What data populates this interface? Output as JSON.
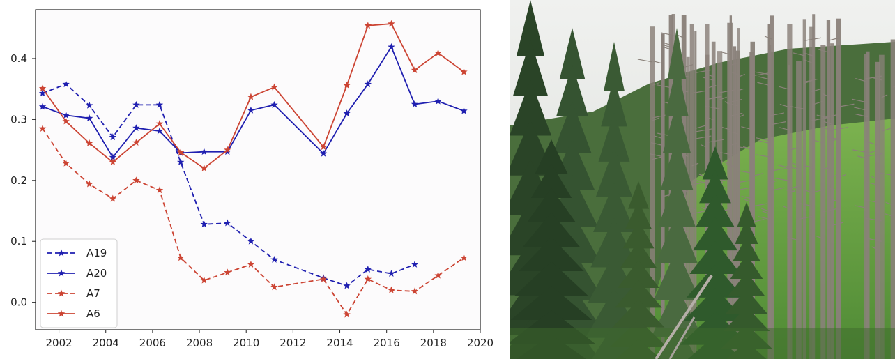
{
  "chart_data": {
    "type": "line",
    "title": "",
    "xlabel": "",
    "ylabel": "",
    "xlim": [
      2001,
      2020
    ],
    "ylim": [
      -0.045,
      0.48
    ],
    "xticks": [
      2002,
      2004,
      2006,
      2008,
      2010,
      2012,
      2014,
      2016,
      2018,
      2020
    ],
    "yticks": [
      0.0,
      0.1,
      0.2,
      0.3,
      0.4
    ],
    "ytick_labels": [
      "0.0",
      "0.1",
      "0.2",
      "0.3",
      "0.4"
    ],
    "grid": false,
    "legend_position": "lower-left",
    "series": [
      {
        "name": "A19",
        "color": "#1f1fb0",
        "linestyle": "dashed",
        "marker": "star",
        "points": [
          [
            2001.3,
            0.343
          ],
          [
            2002.3,
            0.358
          ],
          [
            2003.3,
            0.323
          ],
          [
            2004.3,
            0.271
          ],
          [
            2005.3,
            0.324
          ],
          [
            2006.3,
            0.324
          ],
          [
            2007.2,
            0.23
          ],
          [
            2008.2,
            0.128
          ],
          [
            2009.2,
            0.13
          ],
          [
            2010.2,
            0.1
          ],
          [
            2011.2,
            0.07
          ],
          [
            2013.3,
            0.04
          ],
          [
            2014.3,
            0.027
          ],
          [
            2015.2,
            0.054
          ],
          [
            2016.2,
            0.047
          ],
          [
            2017.2,
            0.062
          ]
        ]
      },
      {
        "name": "A20",
        "color": "#1f1fb0",
        "linestyle": "solid",
        "marker": "star",
        "points": [
          [
            2001.3,
            0.321
          ],
          [
            2002.3,
            0.307
          ],
          [
            2003.3,
            0.302
          ],
          [
            2004.3,
            0.238
          ],
          [
            2005.3,
            0.286
          ],
          [
            2006.3,
            0.281
          ],
          [
            2007.2,
            0.245
          ],
          [
            2008.2,
            0.247
          ],
          [
            2009.2,
            0.247
          ],
          [
            2010.2,
            0.315
          ],
          [
            2011.2,
            0.324
          ],
          [
            2013.3,
            0.244
          ],
          [
            2014.3,
            0.31
          ],
          [
            2015.2,
            0.358
          ],
          [
            2016.2,
            0.419
          ],
          [
            2017.2,
            0.325
          ],
          [
            2018.2,
            0.33
          ],
          [
            2019.3,
            0.314
          ]
        ]
      },
      {
        "name": "A7",
        "color": "#cc4433",
        "linestyle": "dashed",
        "marker": "star",
        "points": [
          [
            2001.3,
            0.285
          ],
          [
            2002.3,
            0.228
          ],
          [
            2003.3,
            0.194
          ],
          [
            2004.3,
            0.17
          ],
          [
            2005.3,
            0.2
          ],
          [
            2006.3,
            0.184
          ],
          [
            2007.2,
            0.073
          ],
          [
            2008.2,
            0.036
          ],
          [
            2009.2,
            0.049
          ],
          [
            2010.2,
            0.062
          ],
          [
            2011.2,
            0.025
          ],
          [
            2013.3,
            0.038
          ],
          [
            2014.3,
            -0.02
          ],
          [
            2015.2,
            0.038
          ],
          [
            2016.2,
            0.02
          ],
          [
            2017.2,
            0.018
          ],
          [
            2018.2,
            0.044
          ],
          [
            2019.3,
            0.073
          ]
        ]
      },
      {
        "name": "A6",
        "color": "#cc4433",
        "linestyle": "solid",
        "marker": "star",
        "points": [
          [
            2001.3,
            0.351
          ],
          [
            2002.3,
            0.297
          ],
          [
            2003.3,
            0.261
          ],
          [
            2004.3,
            0.23
          ],
          [
            2005.3,
            0.262
          ],
          [
            2006.3,
            0.293
          ],
          [
            2007.2,
            0.246
          ],
          [
            2008.2,
            0.22
          ],
          [
            2009.2,
            0.25
          ],
          [
            2010.2,
            0.337
          ],
          [
            2011.2,
            0.353
          ],
          [
            2013.3,
            0.255
          ],
          [
            2014.3,
            0.356
          ],
          [
            2015.2,
            0.454
          ],
          [
            2016.2,
            0.457
          ],
          [
            2017.2,
            0.381
          ],
          [
            2018.2,
            0.409
          ],
          [
            2019.3,
            0.378
          ]
        ]
      }
    ]
  },
  "photo": {
    "sky_color": "#e6e8e6",
    "dark_tree_color": "#2f4a2c",
    "grass_color": "#6fa74a",
    "dead_tree_color": "#8a817a"
  }
}
